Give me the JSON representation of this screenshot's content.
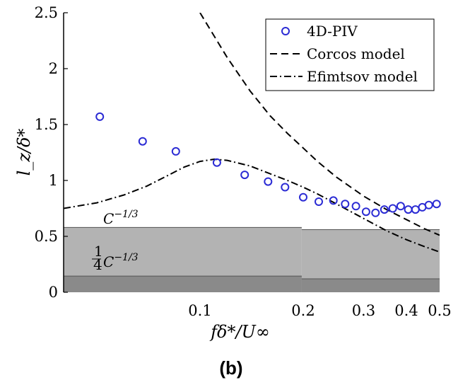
{
  "chart_data": {
    "type": "scatter",
    "xlabel": "fδ*/U∞",
    "ylabel": "l_z/δ*",
    "xscale": "log",
    "xlim": [
      0.04,
      0.5
    ],
    "ylim": [
      0,
      2.5
    ],
    "xticks": [
      {
        "value": 0.1,
        "label": "0.1"
      },
      {
        "value": 0.2,
        "label": "0.2"
      },
      {
        "value": 0.3,
        "label": "0.3"
      },
      {
        "value": 0.4,
        "label": "0.4"
      },
      {
        "value": 0.5,
        "label": "0.5"
      }
    ],
    "yticks": [
      {
        "value": 0,
        "label": "0"
      },
      {
        "value": 0.5,
        "label": "0.5"
      },
      {
        "value": 1,
        "label": "1"
      },
      {
        "value": 1.5,
        "label": "1.5"
      },
      {
        "value": 2,
        "label": "2"
      },
      {
        "value": 2.5,
        "label": "2.5"
      }
    ],
    "legend_position": "top-right",
    "grid": false,
    "series": [
      {
        "name": "4D-PIV",
        "kind": "scatter",
        "color": "#2b2bd4",
        "marker": "open-circle",
        "x": [
          0.051,
          0.068,
          0.085,
          0.112,
          0.135,
          0.158,
          0.177,
          0.2,
          0.222,
          0.245,
          0.265,
          0.285,
          0.305,
          0.325,
          0.345,
          0.365,
          0.385,
          0.405,
          0.425,
          0.445,
          0.465,
          0.49
        ],
        "y": [
          1.57,
          1.35,
          1.26,
          1.16,
          1.05,
          0.99,
          0.94,
          0.85,
          0.81,
          0.82,
          0.79,
          0.77,
          0.72,
          0.71,
          0.74,
          0.75,
          0.77,
          0.74,
          0.74,
          0.76,
          0.78,
          0.79
        ]
      },
      {
        "name": "Corcos model",
        "kind": "line",
        "style": "dashed",
        "color": "#000000",
        "x": [
          0.1,
          0.12,
          0.14,
          0.16,
          0.18,
          0.2,
          0.22,
          0.25,
          0.3,
          0.35,
          0.4,
          0.45,
          0.5
        ],
        "y": [
          2.5,
          2.1,
          1.8,
          1.58,
          1.42,
          1.29,
          1.17,
          1.03,
          0.86,
          0.74,
          0.65,
          0.57,
          0.51
        ]
      },
      {
        "name": "Efimtsov model",
        "kind": "line",
        "style": "dashdot",
        "color": "#000000",
        "x": [
          0.04,
          0.05,
          0.06,
          0.07,
          0.08,
          0.09,
          0.1,
          0.11,
          0.12,
          0.14,
          0.16,
          0.18,
          0.2,
          0.22,
          0.25,
          0.3,
          0.35,
          0.4,
          0.45,
          0.5
        ],
        "y": [
          0.75,
          0.8,
          0.87,
          0.95,
          1.04,
          1.12,
          1.17,
          1.19,
          1.18,
          1.13,
          1.06,
          1.0,
          0.94,
          0.88,
          0.79,
          0.66,
          0.55,
          0.47,
          0.41,
          0.36
        ]
      }
    ],
    "bands": [
      {
        "name": "C^{-1/3}",
        "y_top": 0.58,
        "y_bottom": 0.0,
        "x_from": 0.04,
        "x_to": 0.198,
        "color": "#b3b3b3"
      },
      {
        "name": "C^{-1/3}",
        "y_top": 0.56,
        "y_bottom": 0.0,
        "x_from": 0.198,
        "x_to": 0.5,
        "color": "#b3b3b3"
      },
      {
        "name": "1/4 C^{-1/3}",
        "y_top": 0.145,
        "y_bottom": 0.0,
        "x_from": 0.04,
        "x_to": 0.198,
        "color": "#8a8a8a"
      },
      {
        "name": "1/4 C^{-1/3}",
        "y_top": 0.12,
        "y_bottom": 0.0,
        "x_from": 0.198,
        "x_to": 0.5,
        "color": "#8a8a8a"
      }
    ],
    "annotations": {
      "upper_band": "C",
      "upper_band_exp": "−1/3",
      "lower_band_frac_num": "1",
      "lower_band_frac_den": "4",
      "lower_band": "C",
      "lower_band_exp": "−1/3"
    },
    "subfigure_label": "(b)"
  }
}
